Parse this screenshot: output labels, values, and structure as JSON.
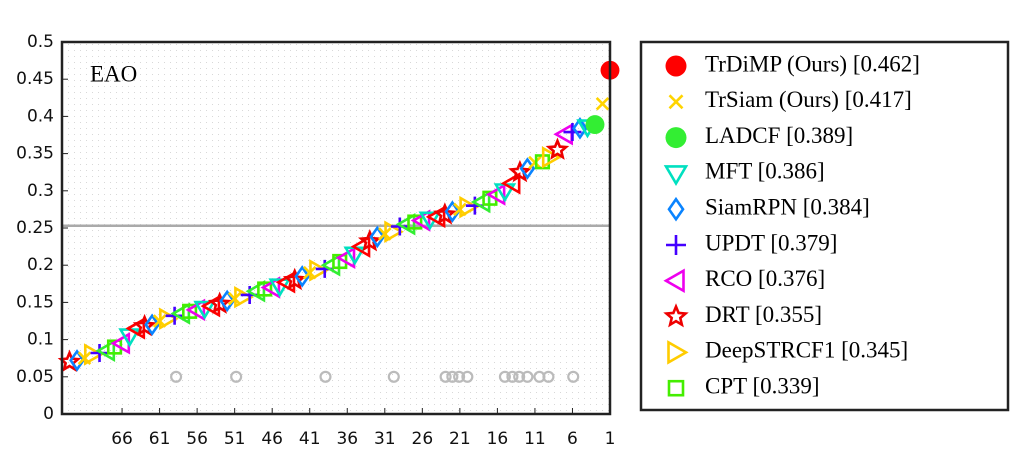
{
  "chart_data": {
    "type": "rank-scatter",
    "annotation": "EAO",
    "xlim": [
      74,
      1
    ],
    "ylim": [
      0,
      0.5
    ],
    "xticks": [
      66,
      61,
      56,
      51,
      46,
      41,
      36,
      31,
      26,
      21,
      16,
      11,
      6,
      1
    ],
    "yticks": [
      0,
      0.05,
      0.1,
      0.15,
      0.2,
      0.25,
      0.3,
      0.35,
      0.4,
      0.45,
      0.5
    ],
    "reference_line": 0.253,
    "reference_color": "#aaaaaa",
    "series": [
      {
        "name": "TrDiMP (Ours) [0.462]",
        "color": "#ff0000",
        "marker": "circle-filled",
        "x": [
          1
        ],
        "values": [
          0.462
        ]
      },
      {
        "name": "TrSiam (Ours) [0.417]",
        "color": "#ffd400",
        "marker": "x",
        "x": [
          2
        ],
        "values": [
          0.417
        ]
      },
      {
        "name": "LADCF [0.389]",
        "color": "#33ee33",
        "marker": "circle-filled",
        "x": [
          3
        ],
        "values": [
          0.389
        ]
      },
      {
        "name": "MFT [0.386]",
        "color": "#00e0c0",
        "marker": "triangle-down",
        "x": [
          4
        ],
        "values": [
          0.386
        ]
      },
      {
        "name": "SiamRPN [0.384]",
        "color": "#0a84ff",
        "marker": "diamond",
        "x": [
          5
        ],
        "values": [
          0.384
        ]
      },
      {
        "name": "UPDT [0.379]",
        "color": "#4400ff",
        "marker": "plus",
        "x": [
          6
        ],
        "values": [
          0.379
        ]
      },
      {
        "name": "RCO [0.376]",
        "color": "#ee00ee",
        "marker": "triangle-left",
        "x": [
          7
        ],
        "values": [
          0.376
        ]
      },
      {
        "name": "DRT [0.355]",
        "color": "#ee0000",
        "marker": "star",
        "x": [
          8
        ],
        "values": [
          0.355
        ]
      },
      {
        "name": "DeepSTRCF1 [0.345]",
        "color": "#ffcc00",
        "marker": "triangle-right",
        "x": [
          9
        ],
        "values": [
          0.345
        ]
      },
      {
        "name": "CPT [0.339]",
        "color": "#44ee00",
        "marker": "square",
        "x": [
          10
        ],
        "values": [
          0.339
        ]
      }
    ],
    "others": {
      "x": [
        11,
        12,
        13,
        14,
        15,
        16,
        17,
        18,
        19,
        20,
        21,
        22,
        23,
        24,
        25,
        26,
        27,
        28,
        29,
        30,
        31,
        32,
        33,
        34,
        35,
        36,
        37,
        38,
        39,
        40,
        41,
        42,
        43,
        44,
        45,
        46,
        47,
        48,
        49,
        50,
        51,
        52,
        53,
        54,
        55,
        56,
        57,
        58,
        59,
        60,
        61,
        62,
        63,
        64,
        65,
        66,
        67,
        68,
        69,
        70,
        71,
        72,
        73
      ],
      "values": [
        0.338,
        0.33,
        0.325,
        0.31,
        0.3,
        0.295,
        0.29,
        0.285,
        0.28,
        0.278,
        0.275,
        0.272,
        0.268,
        0.265,
        0.262,
        0.26,
        0.258,
        0.255,
        0.252,
        0.245,
        0.242,
        0.238,
        0.232,
        0.225,
        0.215,
        0.21,
        0.205,
        0.2,
        0.195,
        0.193,
        0.19,
        0.185,
        0.18,
        0.177,
        0.172,
        0.17,
        0.168,
        0.165,
        0.16,
        0.157,
        0.155,
        0.152,
        0.148,
        0.145,
        0.142,
        0.14,
        0.138,
        0.135,
        0.132,
        0.128,
        0.125,
        0.12,
        0.118,
        0.115,
        0.105,
        0.095,
        0.09,
        0.085,
        0.082,
        0.08,
        0.075,
        0.072,
        0.07
      ]
    },
    "baseline_points": {
      "color": "#bbbbbb",
      "x": [
        58.8,
        50.8,
        38.9,
        29.8,
        22.9,
        22,
        21.1,
        20,
        15,
        14,
        13.1,
        12,
        10.4,
        9.2,
        5.9
      ],
      "values": [
        0.05,
        0.05,
        0.05,
        0.05,
        0.05,
        0.05,
        0.05,
        0.05,
        0.05,
        0.05,
        0.05,
        0.05,
        0.05,
        0.05,
        0.05
      ]
    }
  }
}
